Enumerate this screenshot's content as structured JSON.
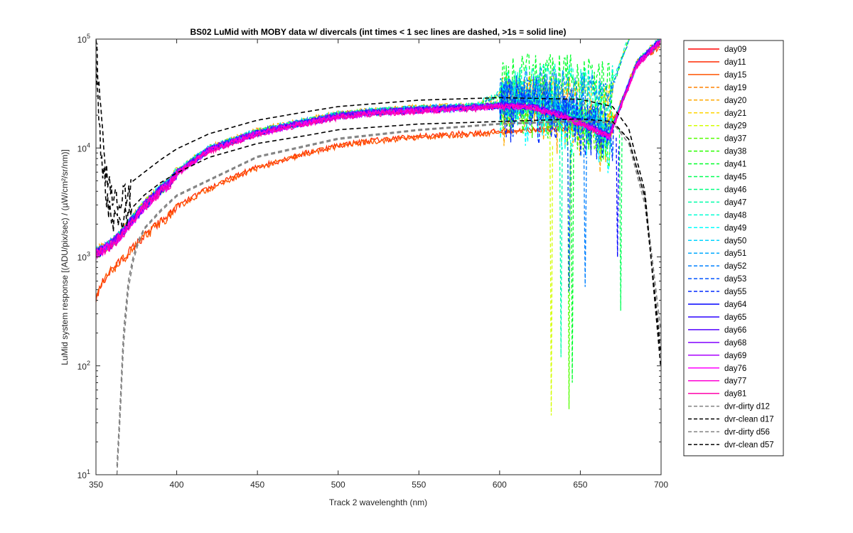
{
  "chart_data": {
    "type": "line",
    "title": "BS02 LuMid with MOBY data w/ divercals (int times < 1 sec lines are dashed, >1s = solid line)",
    "xlabel": "Track 2 wavelenghth (nm)",
    "ylabel": "LuMid system response [(ADU/pix/sec) / (µW/cm²/sr/nm)]",
    "xlim": [
      350,
      700
    ],
    "ylim": [
      10,
      100000
    ],
    "yscale": "log",
    "x_ticks": [
      350,
      400,
      450,
      500,
      550,
      600,
      650,
      700
    ],
    "x_tick_labels": [
      "350",
      "400",
      "450",
      "500",
      "550",
      "600",
      "650",
      "700"
    ],
    "y_ticks": [
      10,
      100,
      1000,
      10000,
      100000
    ],
    "y_tick_labels": [
      {
        "base": "10",
        "exp": "1"
      },
      {
        "base": "10",
        "exp": "2"
      },
      {
        "base": "10",
        "exp": "3"
      },
      {
        "base": "10",
        "exp": "4"
      },
      {
        "base": "10",
        "exp": "5"
      }
    ],
    "grid": false,
    "legend_position": "outside-right",
    "series": [
      {
        "name": "day09",
        "color": "#ff0000",
        "style": "solid",
        "group": "upper",
        "factor": 0.99,
        "x": [
          350,
          355,
          360,
          365,
          370,
          380,
          390,
          400,
          420,
          450,
          480,
          500,
          550,
          600,
          650,
          665,
          680,
          700
        ],
        "y": [
          420,
          620,
          780,
          900,
          1100,
          1550,
          2100,
          2900,
          4300,
          6700,
          9000,
          10600,
          12800,
          14200,
          15500,
          15000,
          26000,
          80000
        ],
        "noise": 0.05,
        "tail_x": [
          600,
          700
        ],
        "tail_y": [
          14200,
          52000
        ]
      },
      {
        "name": "day11",
        "color": "#ff2a00",
        "style": "solid",
        "group": "lower",
        "factor": 1.0
      },
      {
        "name": "day15",
        "color": "#ff5500",
        "style": "solid",
        "group": "lower",
        "factor": 0.98
      },
      {
        "name": "day19",
        "color": "#ff8000",
        "style": "dashed",
        "group": "upper",
        "factor": 1.02
      },
      {
        "name": "day20",
        "color": "#ffaa00",
        "style": "dashed",
        "group": "upper",
        "factor": 1.04
      },
      {
        "name": "day21",
        "color": "#ffd400",
        "style": "dashed",
        "group": "upper",
        "factor": 1.0
      },
      {
        "name": "day29",
        "color": "#d4ff00",
        "style": "dashed",
        "group": "upper",
        "factor": 0.99
      },
      {
        "name": "day37",
        "color": "#55ff00",
        "style": "dashed",
        "group": "upper",
        "factor": 1.01
      },
      {
        "name": "day38",
        "color": "#2aff00",
        "style": "dashed",
        "group": "upper",
        "factor": 1.0
      },
      {
        "name": "day41",
        "color": "#00ff2a",
        "style": "dashed",
        "group": "upper",
        "factor": 0.98
      },
      {
        "name": "day45",
        "color": "#00ff55",
        "style": "dashed",
        "group": "upper",
        "factor": 1.02
      },
      {
        "name": "day46",
        "color": "#00ff80",
        "style": "dashed",
        "group": "upper",
        "factor": 1.01
      },
      {
        "name": "day47",
        "color": "#00ffaa",
        "style": "dashed",
        "group": "upper",
        "factor": 0.99
      },
      {
        "name": "day48",
        "color": "#00ffd4",
        "style": "dashed",
        "group": "upper",
        "factor": 1.03
      },
      {
        "name": "day49",
        "color": "#00ffff",
        "style": "dashed",
        "group": "upper",
        "factor": 1.0
      },
      {
        "name": "day50",
        "color": "#00d4ff",
        "style": "dashed",
        "group": "upper",
        "factor": 0.97
      },
      {
        "name": "day51",
        "color": "#00aaff",
        "style": "dashed",
        "group": "upper",
        "factor": 1.02
      },
      {
        "name": "day52",
        "color": "#0080ff",
        "style": "dashed",
        "group": "upper",
        "factor": 0.98
      },
      {
        "name": "day53",
        "color": "#0055ff",
        "style": "dashed",
        "group": "upper",
        "factor": 1.01
      },
      {
        "name": "day55",
        "color": "#002aff",
        "style": "dashed",
        "group": "upper",
        "factor": 0.99
      },
      {
        "name": "day64",
        "color": "#0000ff",
        "style": "solid",
        "group": "upper",
        "factor": 0.97
      },
      {
        "name": "day65",
        "color": "#2a00ff",
        "style": "solid",
        "group": "upper",
        "factor": 0.98
      },
      {
        "name": "day66",
        "color": "#5500ff",
        "style": "solid",
        "group": "upper",
        "factor": 0.99
      },
      {
        "name": "day68",
        "color": "#8000ff",
        "style": "solid",
        "group": "upper",
        "factor": 1.0
      },
      {
        "name": "day69",
        "color": "#aa00ff",
        "style": "solid",
        "group": "upper",
        "factor": 0.98
      },
      {
        "name": "day76",
        "color": "#ff00ff",
        "style": "solid",
        "group": "upper",
        "factor": 0.96
      },
      {
        "name": "day77",
        "color": "#ff00d4",
        "style": "solid",
        "group": "upper",
        "factor": 0.97
      },
      {
        "name": "day81",
        "color": "#ff00aa",
        "style": "solid",
        "group": "upper",
        "factor": 0.95
      },
      {
        "name": "dvr-dirty d12",
        "color": "#808080",
        "style": "dashed",
        "group": "dvr-dirty"
      },
      {
        "name": "dvr-clean d17",
        "color": "#000000",
        "style": "dashed",
        "group": "dvr-clean-high"
      },
      {
        "name": "dvr-dirty d56",
        "color": "#808080",
        "style": "dashed",
        "group": "dvr-dirty2"
      },
      {
        "name": "dvr-clean d57",
        "color": "#000000",
        "style": "dashed",
        "group": "dvr-clean-low"
      }
    ],
    "curves": {
      "upper": {
        "x": [
          350,
          355,
          360,
          365,
          370,
          380,
          390,
          395,
          400,
          420,
          450,
          480,
          500,
          520,
          550,
          580,
          600,
          620,
          640,
          660,
          668,
          675,
          685,
          700
        ],
        "y": [
          1100,
          1200,
          1350,
          1600,
          2000,
          3000,
          4200,
          4700,
          6000,
          9800,
          14000,
          17500,
          20000,
          21500,
          22800,
          23800,
          25000,
          24500,
          20000,
          15000,
          13000,
          25000,
          60000,
          100000
        ]
      },
      "lower": {
        "x": [
          350,
          355,
          360,
          365,
          370,
          380,
          390,
          395,
          400,
          420,
          450,
          480,
          500,
          520,
          550,
          580,
          600,
          620,
          640,
          660,
          668,
          675,
          685,
          700
        ],
        "y": [
          420,
          620,
          780,
          900,
          1100,
          1550,
          2100,
          2400,
          2900,
          4300,
          6700,
          9000,
          10600,
          11700,
          12800,
          13600,
          14200,
          14800,
          15300,
          15500,
          15000,
          26000,
          60000,
          90000
        ]
      },
      "dvr-dirty": {
        "x": [
          363,
          365,
          367,
          370,
          373,
          376,
          380,
          390,
          400,
          450,
          500,
          550,
          600,
          650,
          670,
          680,
          690,
          700
        ],
        "y": [
          10,
          35,
          150,
          500,
          900,
          1300,
          1800,
          2600,
          3600,
          8200,
          12000,
          14500,
          16500,
          17500,
          17000,
          12000,
          3500,
          200
        ]
      },
      "dvr-dirty2": {
        "x": [
          363,
          365,
          367,
          370,
          373,
          376,
          380,
          390,
          400,
          450,
          500,
          550,
          600,
          650,
          670,
          680,
          690,
          700
        ],
        "y": [
          12,
          45,
          200,
          600,
          1000,
          1400,
          1850,
          2700,
          3700,
          8400,
          12300,
          14800,
          16800,
          17800,
          17000,
          11000,
          3000,
          150
        ]
      },
      "dvr-clean-high": {
        "x": [
          350,
          352,
          355,
          358,
          360,
          365,
          370,
          380,
          390,
          400,
          420,
          450,
          480,
          500,
          550,
          600,
          650,
          670,
          680,
          690,
          700
        ],
        "y": [
          90000,
          30000,
          8000,
          4500,
          3500,
          3000,
          4600,
          6000,
          7800,
          9800,
          13500,
          18000,
          21500,
          24000,
          27500,
          29000,
          28000,
          24000,
          15000,
          4000,
          90
        ]
      },
      "dvr-clean-low": {
        "x": [
          350,
          352,
          355,
          358,
          360,
          365,
          370,
          380,
          390,
          400,
          420,
          450,
          480,
          500,
          550,
          600,
          650,
          670,
          680,
          690,
          700
        ],
        "y": [
          60000,
          15000,
          5000,
          2800,
          2300,
          2100,
          2600,
          3700,
          4800,
          5900,
          8200,
          11000,
          13000,
          14700,
          16600,
          17500,
          18500,
          17500,
          12000,
          3500,
          120
        ]
      }
    },
    "dropouts": [
      {
        "series": "day29",
        "x": 632,
        "y": 35
      },
      {
        "series": "day37",
        "x": 643,
        "y": 40
      },
      {
        "series": "day41",
        "x": 645,
        "y": 70
      },
      {
        "series": "day45",
        "x": 675,
        "y": 320
      },
      {
        "series": "day47",
        "x": 638,
        "y": 120
      },
      {
        "series": "day52",
        "x": 653,
        "y": 530
      },
      {
        "series": "day53",
        "x": 643,
        "y": 480
      },
      {
        "series": "day64",
        "x": 673,
        "y": 1000
      }
    ]
  }
}
